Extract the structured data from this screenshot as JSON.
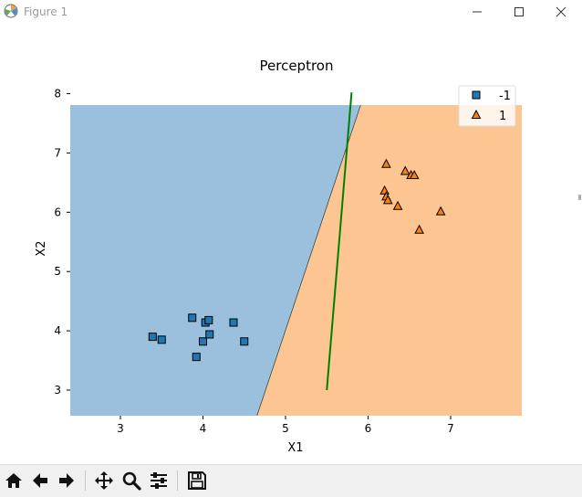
{
  "window": {
    "title": "Figure 1",
    "controls": [
      "minimize",
      "maximize",
      "close"
    ]
  },
  "toolbar": {
    "buttons": [
      "home-icon",
      "back-icon",
      "forward-icon",
      "pan-icon",
      "zoom-icon",
      "configure-subplots-icon",
      "save-icon"
    ]
  },
  "chart_data": {
    "type": "scatter",
    "title": "Perceptron",
    "xlabel": "X1",
    "ylabel": "X2",
    "xlim": [
      2.4,
      7.9
    ],
    "ylim": [
      2.55,
      7.85
    ],
    "xticks": [
      "3",
      "4",
      "5",
      "6",
      "7"
    ],
    "yticks": [
      "3",
      "4",
      "5",
      "6",
      "7",
      "8"
    ],
    "xtick_values": [
      3,
      4,
      5,
      6,
      7
    ],
    "ytick_values": [
      3,
      4,
      5,
      6,
      7,
      8
    ],
    "grid": false,
    "legend_position": "top-right",
    "decision_regions": {
      "boundary": [
        [
          4.65,
          2.55
        ],
        [
          5.92,
          7.85
        ]
      ],
      "left_class": "-1",
      "right_class": "1",
      "colors": {
        "-1": "#9ac0dd",
        "1": "#fdc591"
      }
    },
    "series": [
      {
        "name": "-1",
        "marker": "square",
        "color": "#1f77b4",
        "points": [
          [
            3.39,
            3.9
          ],
          [
            3.5,
            3.85
          ],
          [
            3.87,
            4.22
          ],
          [
            3.92,
            3.56
          ],
          [
            4.0,
            3.82
          ],
          [
            4.03,
            4.14
          ],
          [
            4.07,
            4.18
          ],
          [
            4.08,
            3.94
          ],
          [
            4.37,
            4.14
          ],
          [
            4.5,
            3.82
          ]
        ]
      },
      {
        "name": "1",
        "marker": "triangle",
        "color": "#ff7f0e",
        "points": [
          [
            6.2,
            6.36
          ],
          [
            6.22,
            6.81
          ],
          [
            6.22,
            6.26
          ],
          [
            6.24,
            6.2
          ],
          [
            6.36,
            6.1
          ],
          [
            6.45,
            6.69
          ],
          [
            6.52,
            6.62
          ],
          [
            6.56,
            6.62
          ],
          [
            6.62,
            5.7
          ],
          [
            6.88,
            6.01
          ]
        ]
      }
    ],
    "line": {
      "color": "#008000",
      "points": [
        [
          5.5,
          3.0
        ],
        [
          5.8,
          8.02
        ]
      ]
    }
  }
}
